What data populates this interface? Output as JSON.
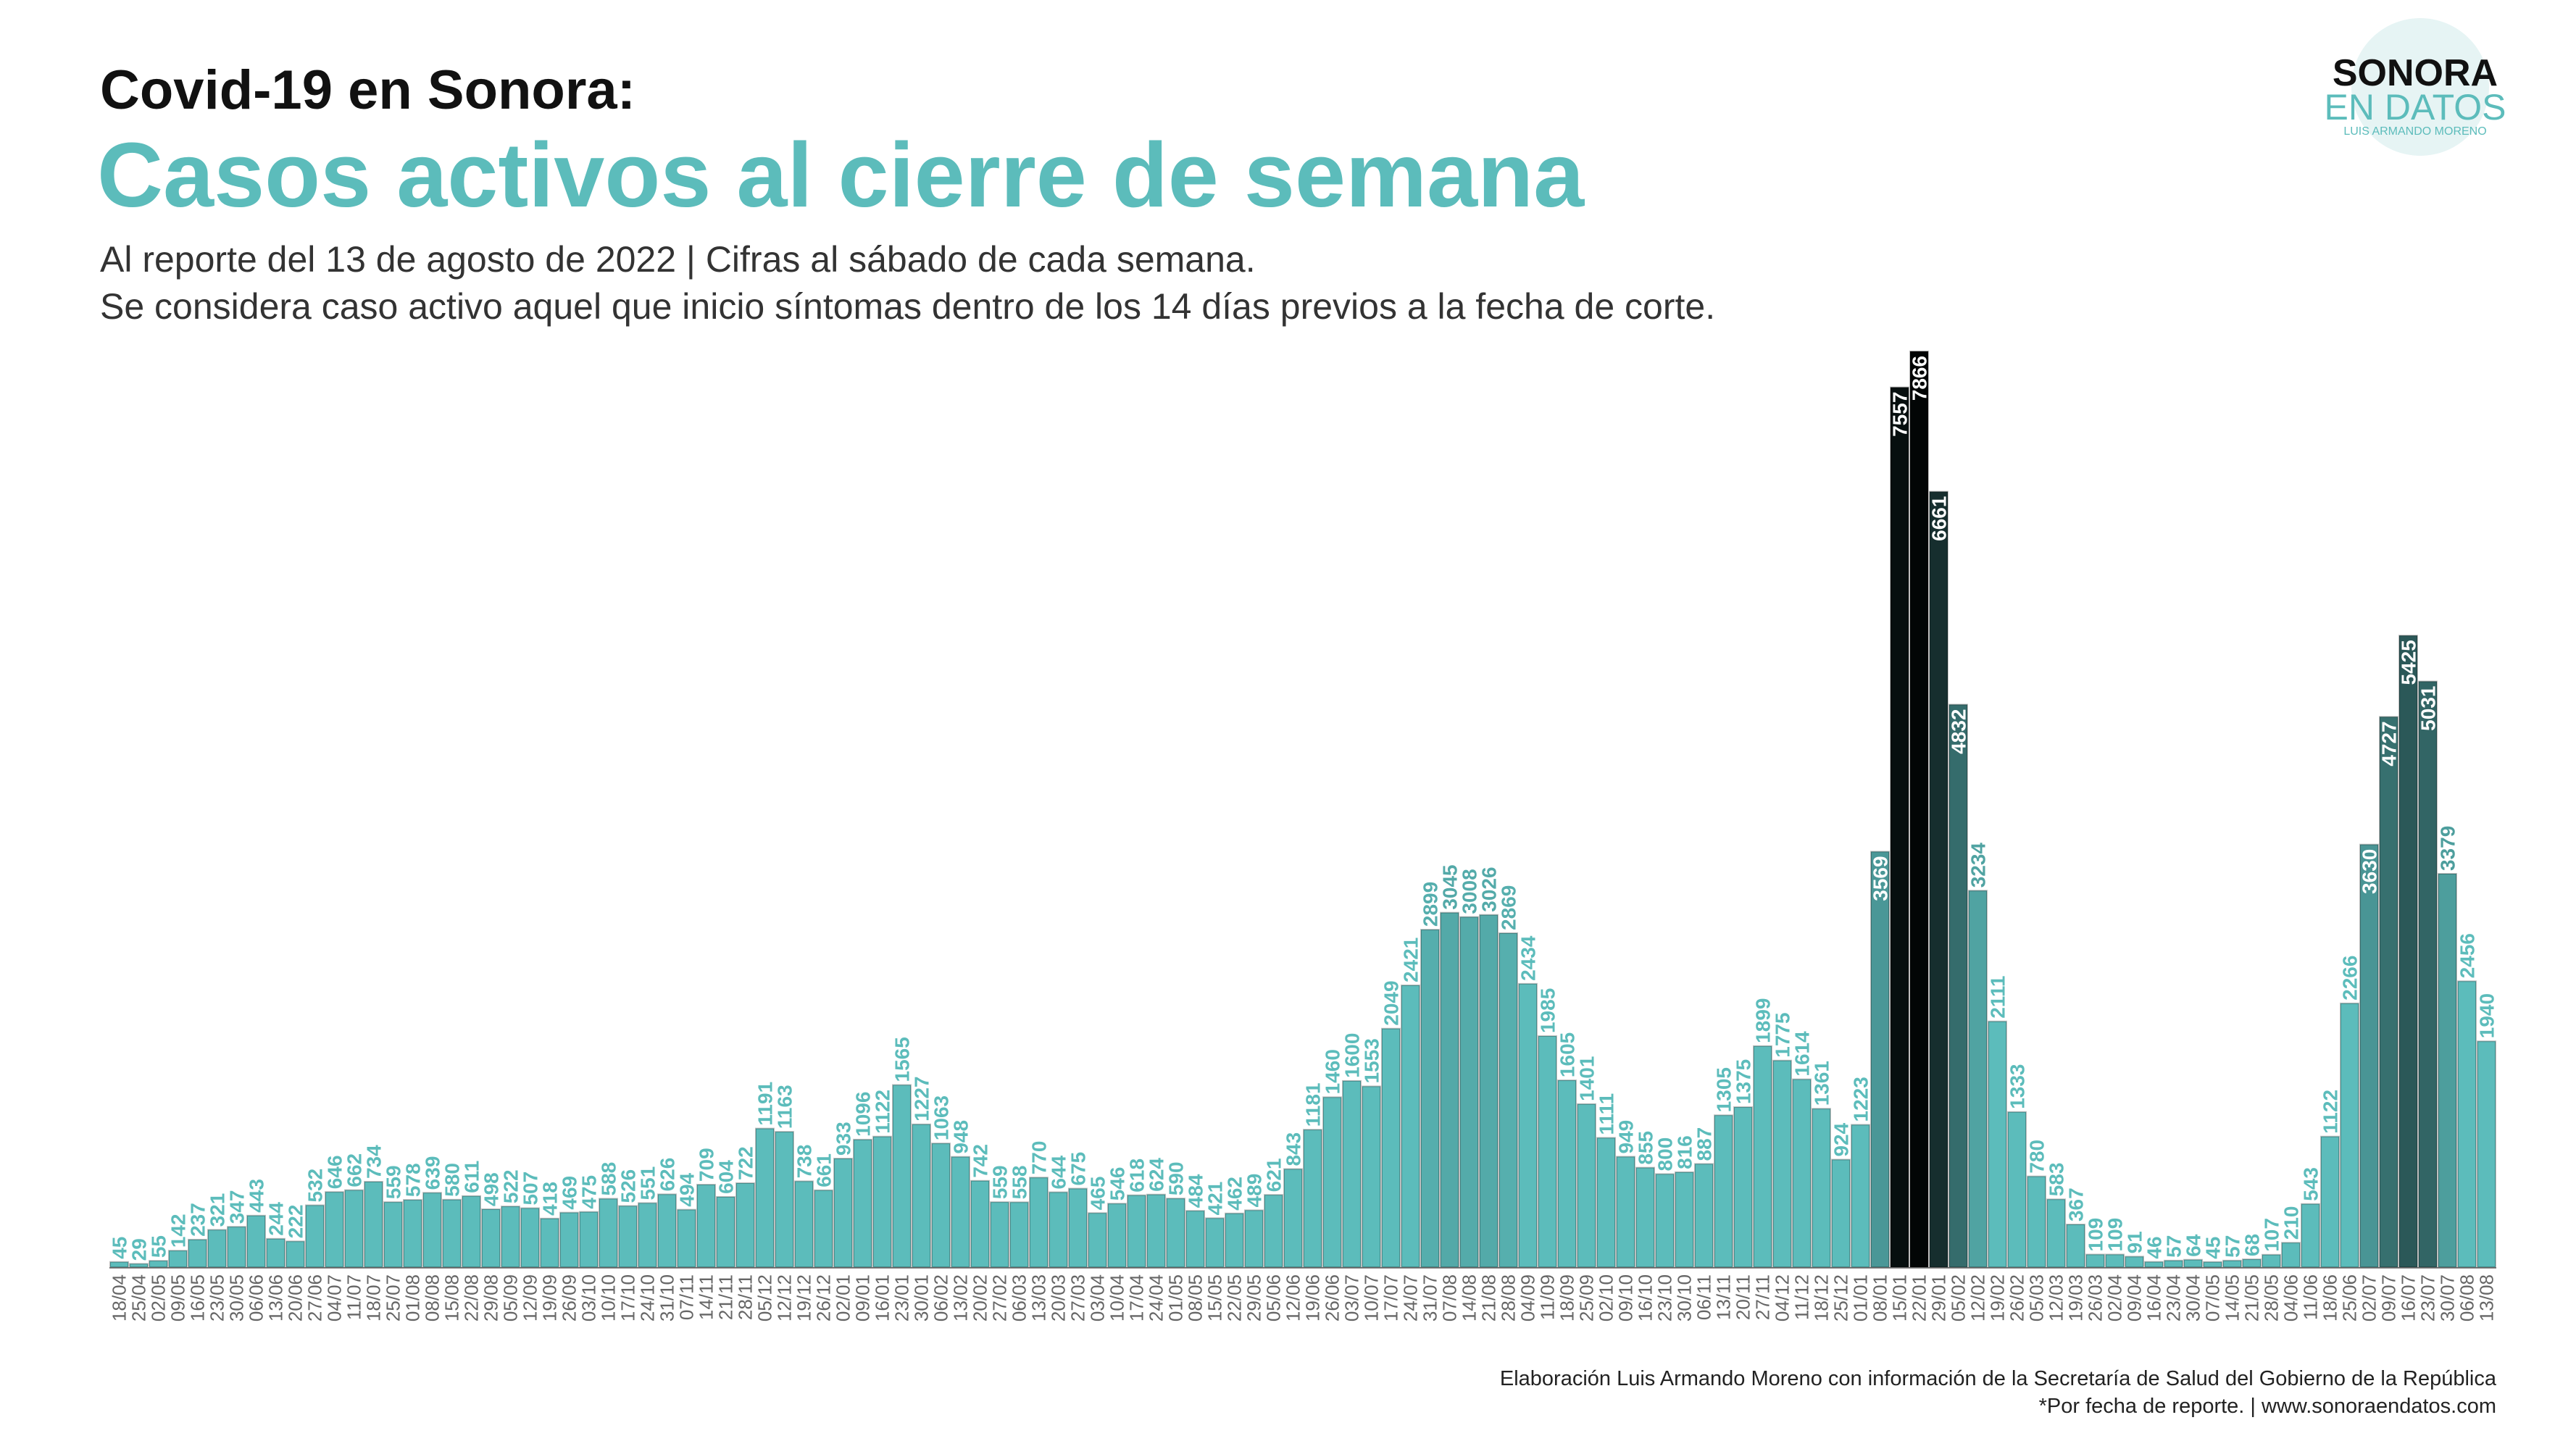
{
  "chart_data": {
    "type": "bar",
    "title": "Covid-19  en Sonora:",
    "headline": "Casos activos al cierre de semana",
    "subtitle": [
      "Al reporte del 13 de agosto de 2022  | Cifras al sábado de cada semana.",
      "Se considera caso activo aquel que inicio síntomas dentro de los 14 días previos a la fecha de corte."
    ],
    "source": [
      "Elaboración Luis Armando Moreno con información de la Secretaría de Salud del Gobierno de la República",
      "*Por fecha de reporte. | www.sonoraendatos.com"
    ],
    "logo": [
      "SONORA",
      "EN DATOS",
      "LUIS ARMANDO MORENO"
    ],
    "categories": [
      "18/04",
      "25/04",
      "02/05",
      "09/05",
      "16/05",
      "23/05",
      "30/05",
      "06/06",
      "13/06",
      "20/06",
      "27/06",
      "04/07",
      "11/07",
      "18/07",
      "25/07",
      "01/08",
      "08/08",
      "15/08",
      "22/08",
      "29/08",
      "05/09",
      "12/09",
      "19/09",
      "26/09",
      "03/10",
      "10/10",
      "17/10",
      "24/10",
      "31/10",
      "07/11",
      "14/11",
      "21/11",
      "28/11",
      "05/12",
      "12/12",
      "19/12",
      "26/12",
      "02/01",
      "09/01",
      "16/01",
      "23/01",
      "30/01",
      "06/02",
      "13/02",
      "20/02",
      "27/02",
      "06/03",
      "13/03",
      "20/03",
      "27/03",
      "03/04",
      "10/04",
      "17/04",
      "24/04",
      "01/05",
      "08/05",
      "15/05",
      "22/05",
      "29/05",
      "05/06",
      "12/06",
      "19/06",
      "26/06",
      "03/07",
      "10/07",
      "17/07",
      "24/07",
      "31/07",
      "07/08",
      "14/08",
      "21/08",
      "28/08",
      "04/09",
      "11/09",
      "18/09",
      "25/09",
      "02/10",
      "09/10",
      "16/10",
      "23/10",
      "30/10",
      "06/11",
      "13/11",
      "20/11",
      "27/11",
      "04/12",
      "11/12",
      "18/12",
      "25/12",
      "01/01",
      "08/01",
      "15/01",
      "22/01",
      "29/01",
      "05/02",
      "12/02",
      "19/02",
      "26/02",
      "05/03",
      "12/03",
      "19/03",
      "26/03",
      "02/04",
      "09/04",
      "16/04",
      "23/04",
      "30/04",
      "07/05",
      "14/05",
      "21/05",
      "28/05",
      "04/06",
      "11/06",
      "18/06",
      "25/06",
      "02/07",
      "09/07",
      "16/07",
      "23/07",
      "30/07",
      "06/08",
      "13/08"
    ],
    "values": [
      45,
      29,
      55,
      142,
      237,
      321,
      347,
      443,
      244,
      222,
      532,
      646,
      662,
      734,
      559,
      578,
      639,
      580,
      611,
      498,
      522,
      507,
      418,
      469,
      475,
      588,
      526,
      551,
      626,
      494,
      709,
      604,
      722,
      1191,
      1163,
      738,
      661,
      933,
      1096,
      1122,
      1565,
      1227,
      1063,
      948,
      742,
      559,
      558,
      770,
      644,
      675,
      465,
      546,
      618,
      624,
      590,
      484,
      421,
      462,
      489,
      621,
      843,
      1181,
      1460,
      1600,
      1553,
      2049,
      2421,
      2899,
      3045,
      3008,
      3026,
      2869,
      2434,
      1985,
      1605,
      1401,
      1111,
      949,
      855,
      800,
      816,
      887,
      1305,
      1375,
      1899,
      1775,
      1614,
      1361,
      924,
      1223,
      3569,
      7557,
      7866,
      6661,
      4832,
      3234,
      2111,
      1333,
      780,
      583,
      367,
      109,
      109,
      91,
      46,
      57,
      64,
      45,
      57,
      68,
      107,
      210,
      543,
      1122,
      2266,
      3630,
      4727,
      5425,
      5031,
      3379,
      2456,
      1940
    ],
    "color": "#5cbcbb",
    "color_scale": {
      "domain": [
        2500,
        8000
      ],
      "range": [
        "#5cbcbb",
        "#000000"
      ]
    }
  }
}
